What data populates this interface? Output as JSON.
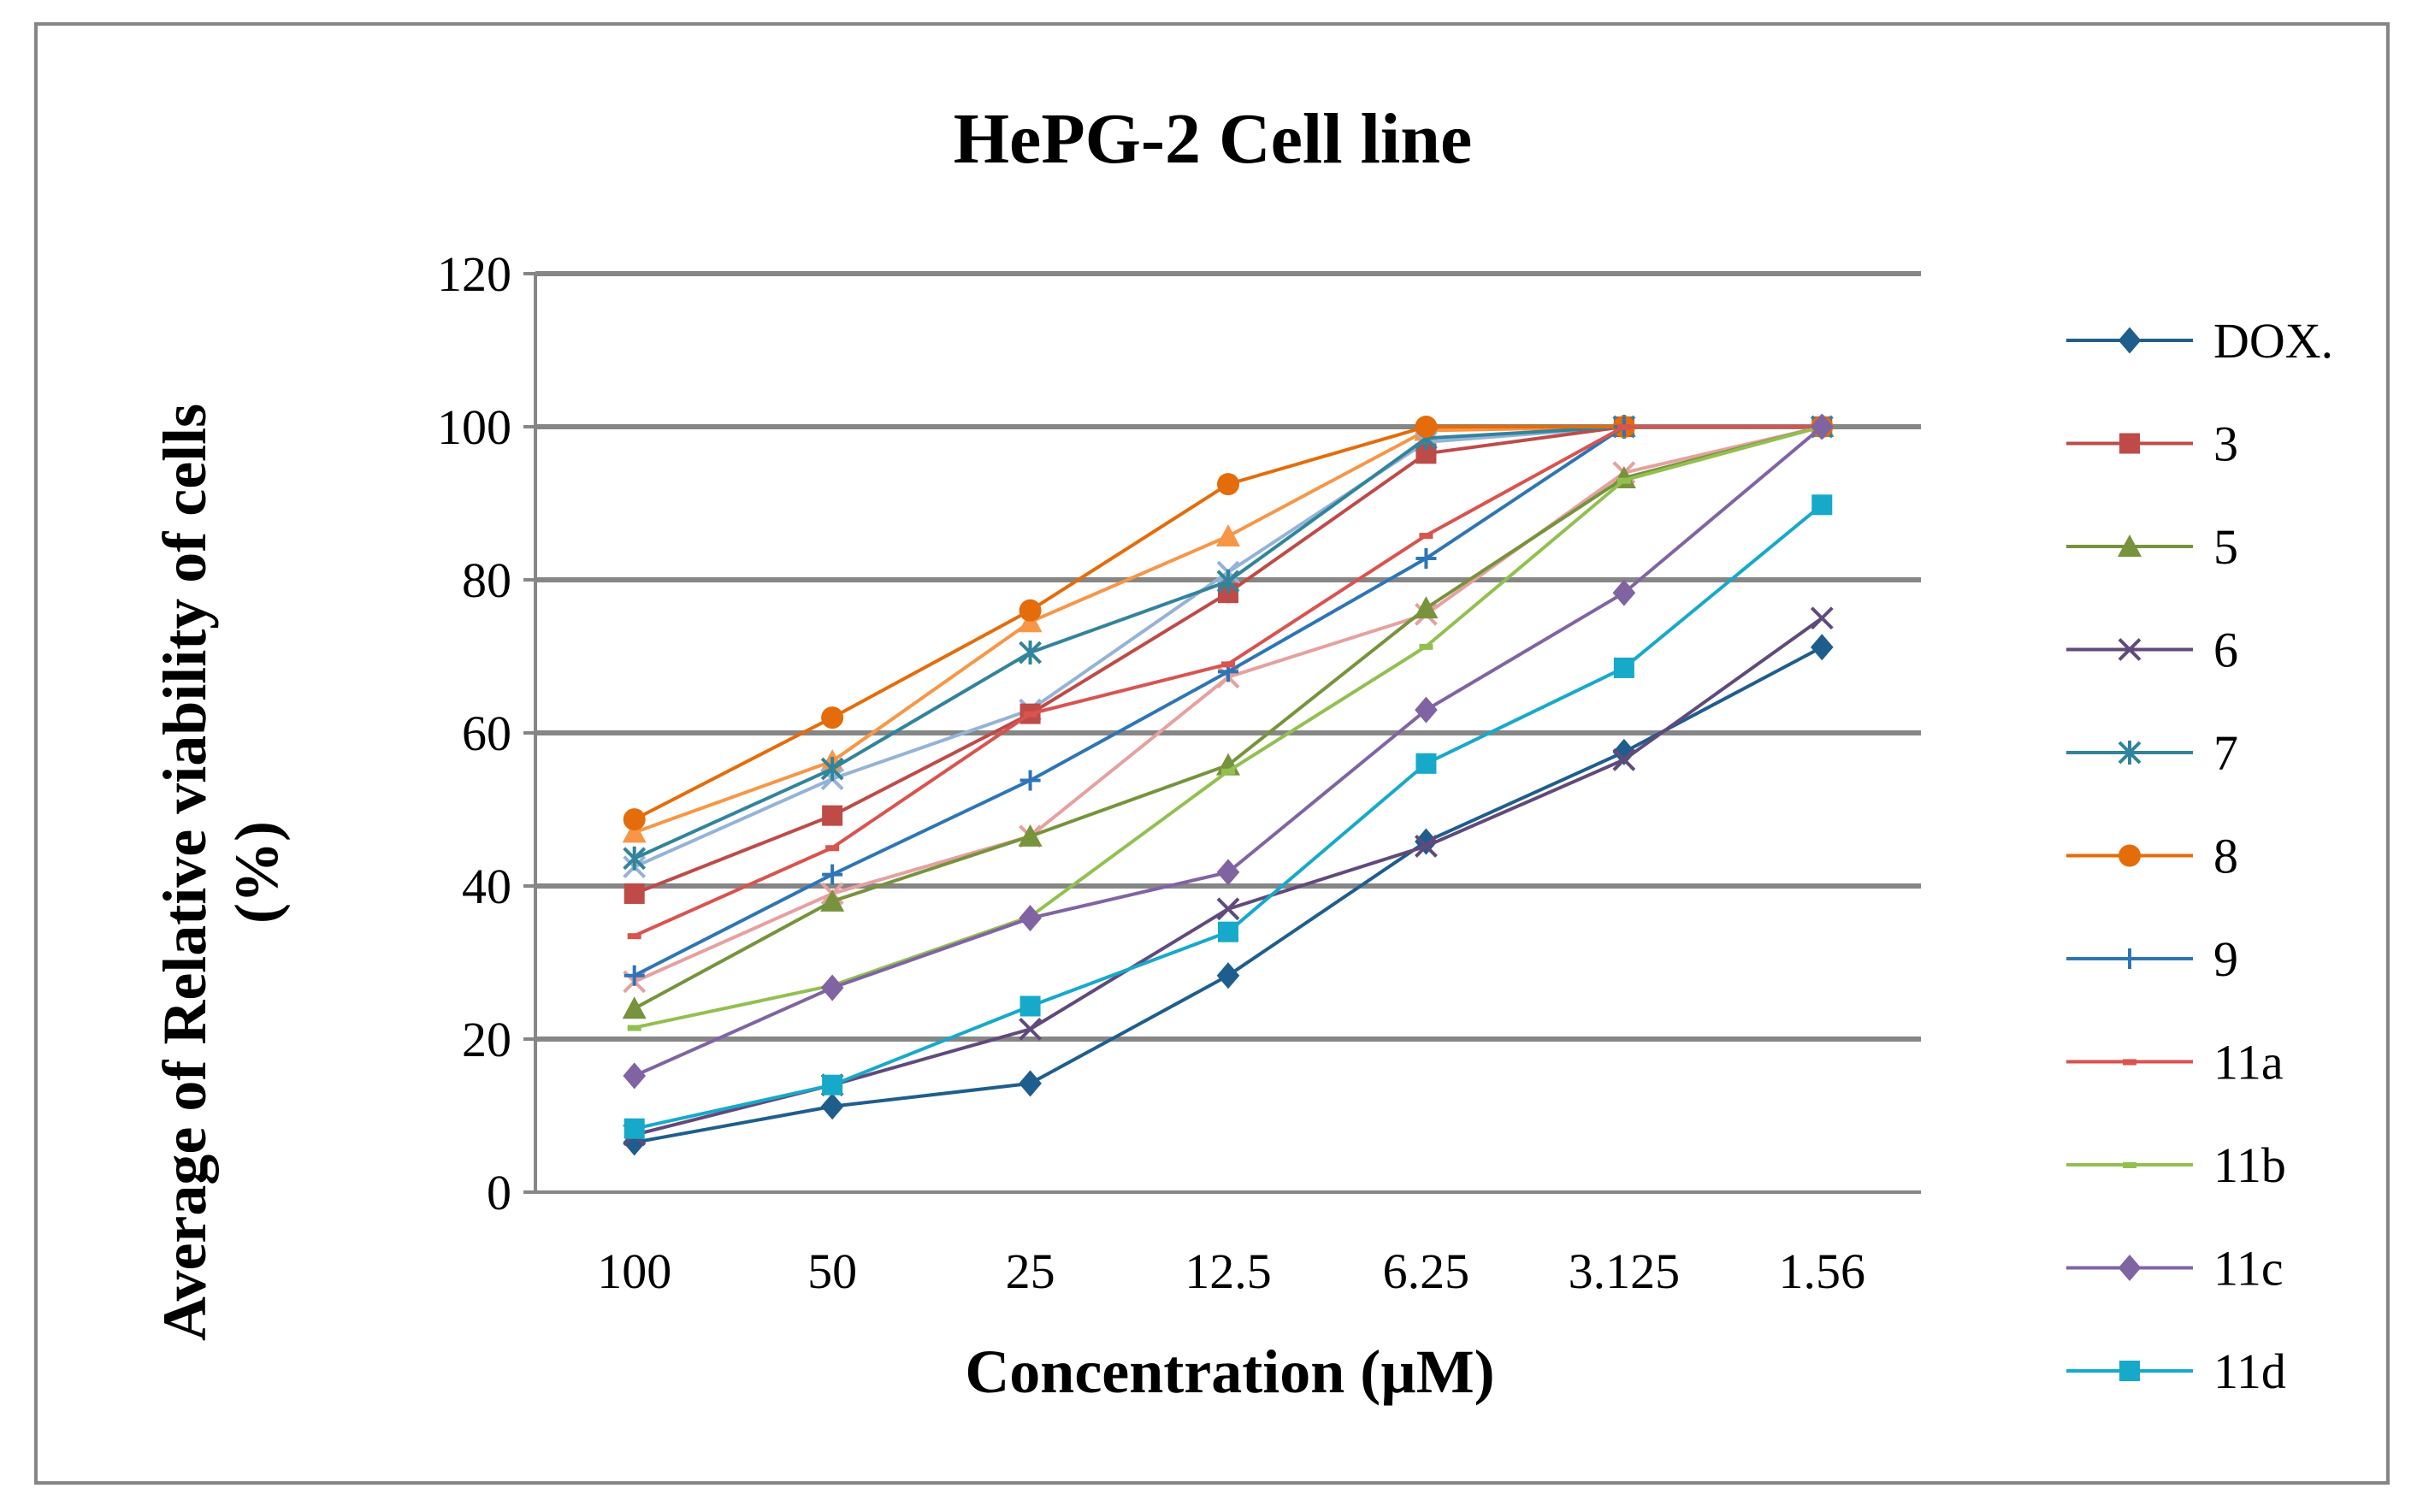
{
  "chart_data": {
    "type": "line",
    "title": "HePG-2 Cell line",
    "xlabel": "Concentration (µM)",
    "ylabel_line1": "Average of Relative viability of cells",
    "ylabel_line2": "(%)",
    "categories": [
      "100",
      "50",
      "25",
      "12.5",
      "6.25",
      "3.125",
      "1.56"
    ],
    "ylim": [
      0,
      120
    ],
    "yticks": [
      "0",
      "20",
      "40",
      "60",
      "80",
      "100",
      "120"
    ],
    "grid": "horizontal",
    "legend_position": "right",
    "series": [
      {
        "name": "DOX.",
        "marker": "diamond",
        "color": "#1F5E8C",
        "values": [
          6.5,
          11.2,
          14.2,
          28.3,
          45.8,
          57.5,
          71.2
        ]
      },
      {
        "name": "3",
        "marker": "square",
        "color": "#BE4B48",
        "values": [
          39.0,
          49.2,
          62.5,
          78.3,
          96.5,
          100,
          100
        ]
      },
      {
        "name": "5",
        "marker": "triangle",
        "color": "#77933C",
        "values": [
          24.0,
          38.0,
          46.5,
          55.8,
          76.3,
          93.3,
          100
        ]
      },
      {
        "name": "6",
        "marker": "x",
        "color": "#604A7B",
        "values": [
          7.5,
          14.0,
          21.3,
          37.0,
          45.2,
          56.5,
          75.0
        ]
      },
      {
        "name": "7",
        "marker": "asterisk",
        "color": "#31849B",
        "values": [
          43.6,
          55.3,
          70.5,
          79.8,
          98.5,
          100,
          100
        ]
      },
      {
        "name": "8",
        "marker": "circle",
        "color": "#E46C0A",
        "values": [
          48.7,
          62.0,
          76.0,
          92.5,
          100,
          100,
          100
        ]
      },
      {
        "name": "9",
        "marker": "plus",
        "color": "#2E75B6",
        "values": [
          28.3,
          41.5,
          53.8,
          68.0,
          82.8,
          100,
          100
        ]
      },
      {
        "name": "11a",
        "marker": "dash",
        "color": "#D9534F",
        "values": [
          33.5,
          45.0,
          62.5,
          69.0,
          85.8,
          100,
          100
        ]
      },
      {
        "name": "11b",
        "marker": "dash",
        "color": "#92C050",
        "values": [
          21.5,
          27.0,
          36.0,
          55.0,
          71.3,
          93.0,
          100
        ]
      },
      {
        "name": "11c",
        "marker": "diamond",
        "color": "#8064A2",
        "values": [
          15.2,
          26.7,
          35.8,
          41.8,
          63.0,
          78.3,
          100
        ]
      },
      {
        "name": "11d",
        "marker": "square",
        "color": "#17A9C9",
        "values": [
          8.3,
          14.0,
          24.3,
          34.0,
          56.0,
          68.5,
          89.8
        ]
      },
      {
        "name": "",
        "legend": false,
        "marker": "triangle",
        "color": "#F79646",
        "values": [
          47.0,
          56.3,
          74.5,
          85.7,
          99.5,
          100,
          100
        ]
      },
      {
        "name": "",
        "legend": false,
        "marker": "x",
        "color": "#95B3D7",
        "values": [
          42.5,
          54.0,
          63.0,
          81.0,
          98.0,
          100,
          100
        ]
      },
      {
        "name": "",
        "legend": false,
        "marker": "x",
        "color": "#E6A0A0",
        "values": [
          27.5,
          39.0,
          46.5,
          67.3,
          75.5,
          94.0,
          100
        ]
      }
    ]
  }
}
